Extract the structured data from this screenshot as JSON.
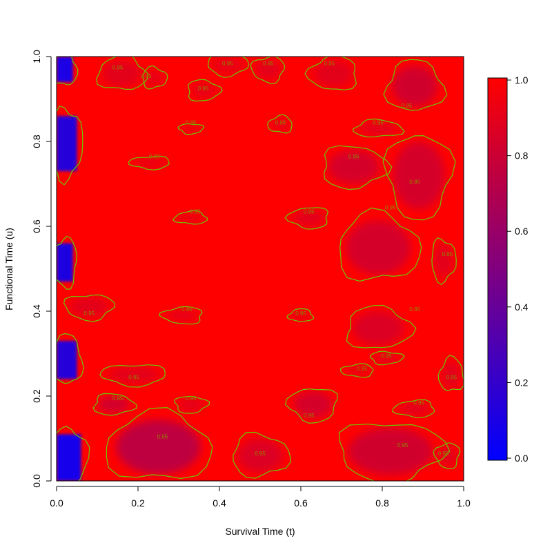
{
  "chart_data": {
    "type": "heatmap",
    "xlabel": "Survival Time (t)",
    "ylabel": "Functional Time (u)",
    "xlim": [
      0,
      1
    ],
    "ylim": [
      0,
      1
    ],
    "x_ticks": [
      "0.0",
      "0.2",
      "0.4",
      "0.6",
      "0.8",
      "1.0"
    ],
    "y_ticks": [
      "0.0",
      "0.2",
      "0.4",
      "0.6",
      "0.8",
      "1.0"
    ],
    "colorbar": {
      "range": [
        0,
        1
      ],
      "ticks": [
        "0.0",
        "0.2",
        "0.4",
        "0.6",
        "0.8",
        "1.0"
      ],
      "low_color": "#0000ff",
      "high_color": "#ff0000"
    },
    "contour_level": "0.95",
    "contour_color": "#66cc00",
    "low_value_regions": [
      {
        "name": "blue-strip-top",
        "x": [
          0.0,
          0.04
        ],
        "y": [
          0.94,
          1.0
        ],
        "value": 0.1
      },
      {
        "name": "blue-strip-upper",
        "x": [
          0.0,
          0.05
        ],
        "y": [
          0.73,
          0.86
        ],
        "value": 0.15
      },
      {
        "name": "blue-strip-middle",
        "x": [
          0.0,
          0.04
        ],
        "y": [
          0.47,
          0.56
        ],
        "value": 0.12
      },
      {
        "name": "blue-strip-lower",
        "x": [
          0.0,
          0.05
        ],
        "y": [
          0.24,
          0.33
        ],
        "value": 0.15
      },
      {
        "name": "blue-strip-bottom",
        "x": [
          0.0,
          0.06
        ],
        "y": [
          0.0,
          0.11
        ],
        "value": 0.08
      }
    ],
    "contour_regions": [
      {
        "cx": 0.16,
        "cy": 0.96,
        "rx": 0.06,
        "ry": 0.04,
        "value": 0.88,
        "label_x": 0.15,
        "label_y": 0.97
      },
      {
        "cx": 0.24,
        "cy": 0.95,
        "rx": 0.03,
        "ry": 0.025,
        "value": 0.9,
        "label_x": 0.22,
        "label_y": 0.95
      },
      {
        "cx": 0.42,
        "cy": 0.98,
        "rx": 0.05,
        "ry": 0.025,
        "value": 0.9,
        "label_x": 0.42,
        "label_y": 0.98
      },
      {
        "cx": 0.52,
        "cy": 0.97,
        "rx": 0.04,
        "ry": 0.03,
        "value": 0.88,
        "label_x": 0.52,
        "label_y": 0.98
      },
      {
        "cx": 0.68,
        "cy": 0.96,
        "rx": 0.06,
        "ry": 0.04,
        "value": 0.88,
        "label_x": 0.67,
        "label_y": 0.98
      },
      {
        "cx": 0.88,
        "cy": 0.93,
        "rx": 0.07,
        "ry": 0.06,
        "value": 0.8,
        "label_x": 0.86,
        "label_y": 0.88
      },
      {
        "cx": 0.36,
        "cy": 0.92,
        "rx": 0.04,
        "ry": 0.025,
        "value": 0.9,
        "label_x": 0.36,
        "label_y": 0.92
      },
      {
        "cx": 0.33,
        "cy": 0.83,
        "rx": 0.03,
        "ry": 0.012,
        "value": 0.9,
        "label_x": 0.33,
        "label_y": 0.84
      },
      {
        "cx": 0.23,
        "cy": 0.75,
        "rx": 0.05,
        "ry": 0.015,
        "value": 0.9,
        "label_x": 0.24,
        "label_y": 0.76
      },
      {
        "cx": 0.55,
        "cy": 0.84,
        "rx": 0.03,
        "ry": 0.02,
        "value": 0.9,
        "label_x": 0.55,
        "label_y": 0.84
      },
      {
        "cx": 0.79,
        "cy": 0.83,
        "rx": 0.06,
        "ry": 0.02,
        "value": 0.88,
        "label_x": 0.79,
        "label_y": 0.84
      },
      {
        "cx": 0.73,
        "cy": 0.74,
        "rx": 0.08,
        "ry": 0.05,
        "value": 0.82,
        "label_x": 0.73,
        "label_y": 0.76
      },
      {
        "cx": 0.89,
        "cy": 0.72,
        "rx": 0.08,
        "ry": 0.1,
        "value": 0.82,
        "label_x": 0.88,
        "label_y": 0.7
      },
      {
        "cx": 0.62,
        "cy": 0.62,
        "rx": 0.05,
        "ry": 0.025,
        "value": 0.88,
        "label_x": 0.62,
        "label_y": 0.63
      },
      {
        "cx": 0.33,
        "cy": 0.62,
        "rx": 0.04,
        "ry": 0.015,
        "value": 0.9,
        "label_x": 0.34,
        "label_y": 0.63
      },
      {
        "cx": 0.79,
        "cy": 0.55,
        "rx": 0.1,
        "ry": 0.08,
        "value": 0.82,
        "label_x": 0.82,
        "label_y": 0.64
      },
      {
        "cx": 0.95,
        "cy": 0.52,
        "rx": 0.03,
        "ry": 0.05,
        "value": 0.88,
        "label_x": 0.96,
        "label_y": 0.53
      },
      {
        "cx": 0.08,
        "cy": 0.41,
        "rx": 0.06,
        "ry": 0.03,
        "value": 0.88,
        "label_x": 0.08,
        "label_y": 0.39
      },
      {
        "cx": 0.31,
        "cy": 0.39,
        "rx": 0.05,
        "ry": 0.02,
        "value": 0.9,
        "label_x": 0.32,
        "label_y": 0.4
      },
      {
        "cx": 0.6,
        "cy": 0.39,
        "rx": 0.03,
        "ry": 0.015,
        "value": 0.9,
        "label_x": 0.6,
        "label_y": 0.39
      },
      {
        "cx": 0.79,
        "cy": 0.36,
        "rx": 0.08,
        "ry": 0.05,
        "value": 0.85,
        "label_x": 0.88,
        "label_y": 0.4
      },
      {
        "cx": 0.81,
        "cy": 0.29,
        "rx": 0.04,
        "ry": 0.015,
        "value": 0.88,
        "label_x": 0.81,
        "label_y": 0.29
      },
      {
        "cx": 0.19,
        "cy": 0.25,
        "rx": 0.08,
        "ry": 0.025,
        "value": 0.88,
        "label_x": 0.19,
        "label_y": 0.24
      },
      {
        "cx": 0.74,
        "cy": 0.26,
        "rx": 0.04,
        "ry": 0.015,
        "value": 0.9,
        "label_x": 0.75,
        "label_y": 0.26
      },
      {
        "cx": 0.97,
        "cy": 0.25,
        "rx": 0.03,
        "ry": 0.04,
        "value": 0.88,
        "label_x": 0.97,
        "label_y": 0.24
      },
      {
        "cx": 0.14,
        "cy": 0.18,
        "rx": 0.05,
        "ry": 0.025,
        "value": 0.8,
        "label_x": 0.15,
        "label_y": 0.19
      },
      {
        "cx": 0.33,
        "cy": 0.18,
        "rx": 0.04,
        "ry": 0.02,
        "value": 0.88,
        "label_x": 0.33,
        "label_y": 0.19
      },
      {
        "cx": 0.63,
        "cy": 0.18,
        "rx": 0.06,
        "ry": 0.04,
        "value": 0.82,
        "label_x": 0.62,
        "label_y": 0.15
      },
      {
        "cx": 0.88,
        "cy": 0.17,
        "rx": 0.05,
        "ry": 0.02,
        "value": 0.88,
        "label_x": 0.89,
        "label_y": 0.18
      },
      {
        "cx": 0.25,
        "cy": 0.08,
        "rx": 0.13,
        "ry": 0.08,
        "value": 0.72,
        "label_x": 0.26,
        "label_y": 0.1
      },
      {
        "cx": 0.5,
        "cy": 0.06,
        "rx": 0.07,
        "ry": 0.05,
        "value": 0.85,
        "label_x": 0.5,
        "label_y": 0.06
      },
      {
        "cx": 0.82,
        "cy": 0.07,
        "rx": 0.13,
        "ry": 0.07,
        "value": 0.8,
        "label_x": 0.85,
        "label_y": 0.08
      },
      {
        "cx": 0.96,
        "cy": 0.06,
        "rx": 0.03,
        "ry": 0.03,
        "value": 0.88,
        "label_x": 0.95,
        "label_y": 0.06
      }
    ]
  }
}
